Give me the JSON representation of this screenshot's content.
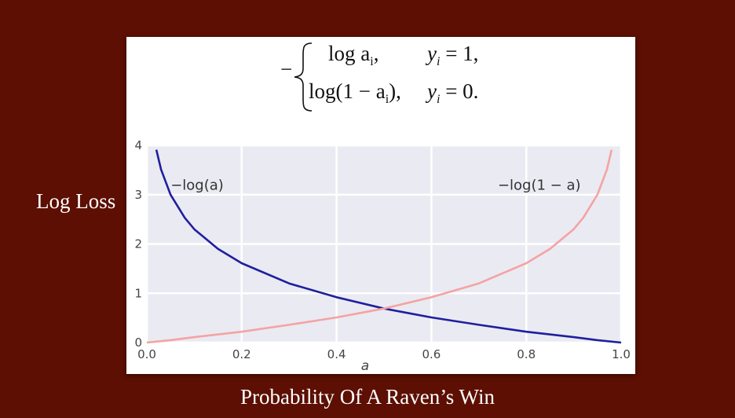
{
  "slide": {
    "y_side_label": "Log Loss",
    "x_bottom_label": "Probability Of A Raven’s Win"
  },
  "formula": {
    "sign": "−",
    "row1_expr": "log a",
    "row1_sub": "i",
    "row1_tail": ",",
    "row1_cond_var": "y",
    "row1_cond_sub": "i",
    "row1_cond_rhs": " = 1,",
    "row2_expr_a": "log(1 − a",
    "row2_sub": "i",
    "row2_expr_b": "),",
    "row2_cond_var": "y",
    "row2_cond_sub": "i",
    "row2_cond_rhs": " = 0."
  },
  "chart_data": {
    "type": "line",
    "xlabel": "a",
    "ylabel": "",
    "xlim": [
      0.0,
      1.0
    ],
    "ylim": [
      0.0,
      4.0
    ],
    "xticks": [
      "0.0",
      "0.2",
      "0.4",
      "0.6",
      "0.8",
      "1.0"
    ],
    "xtick_values": [
      0.0,
      0.2,
      0.4,
      0.6,
      0.8,
      1.0
    ],
    "yticks": [
      "0",
      "1",
      "2",
      "3",
      "4"
    ],
    "ytick_values": [
      0,
      1,
      2,
      3,
      4
    ],
    "grid": true,
    "series": [
      {
        "name": "−log(a)",
        "color": "#1f1f9e",
        "x": [
          0.02,
          0.03,
          0.05,
          0.08,
          0.1,
          0.15,
          0.2,
          0.3,
          0.4,
          0.5,
          0.6,
          0.7,
          0.8,
          0.9,
          0.95,
          1.0
        ],
        "values": [
          3.91,
          3.51,
          3.0,
          2.53,
          2.3,
          1.9,
          1.61,
          1.2,
          0.92,
          0.69,
          0.51,
          0.36,
          0.22,
          0.11,
          0.05,
          0.0
        ]
      },
      {
        "name": "−log(1 − a)",
        "color": "#f4a3a3",
        "x": [
          0.0,
          0.05,
          0.1,
          0.2,
          0.3,
          0.4,
          0.5,
          0.6,
          0.7,
          0.8,
          0.85,
          0.9,
          0.92,
          0.95,
          0.97,
          0.98
        ],
        "values": [
          0.0,
          0.05,
          0.11,
          0.22,
          0.36,
          0.51,
          0.69,
          0.92,
          1.2,
          1.61,
          1.9,
          2.3,
          2.53,
          3.0,
          3.51,
          3.91
        ]
      }
    ],
    "annotations": [
      {
        "text": "−log(a)",
        "x": 0.05,
        "y": 3.1
      },
      {
        "text": "−log(1 − a)",
        "x": 0.74,
        "y": 3.1
      }
    ],
    "background": "#eaeaf2"
  }
}
